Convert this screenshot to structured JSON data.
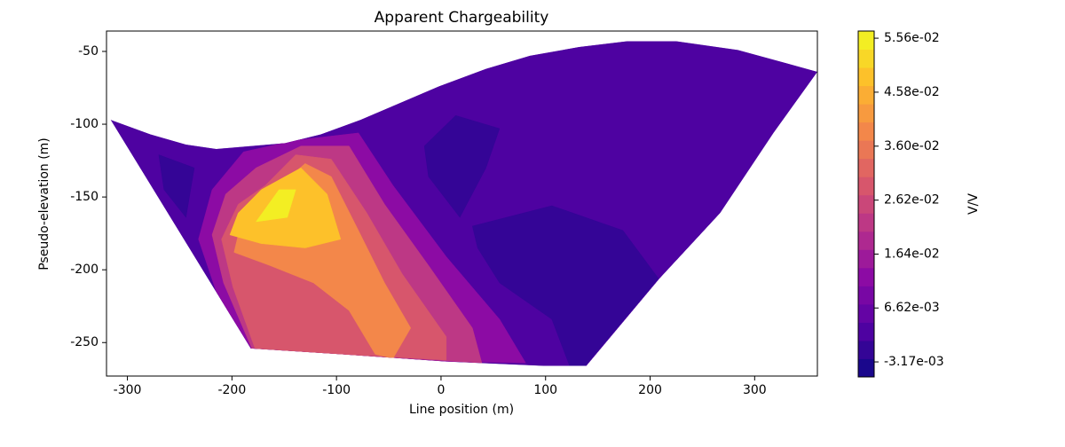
{
  "chart_data": {
    "type": "contour",
    "title": "Apparent Chargeability",
    "xlabel": "Line position (m)",
    "ylabel": "Pseudo-elevation (m)",
    "xlim": [
      -320,
      360
    ],
    "ylim": [
      -273,
      -36
    ],
    "xticks": [
      -300,
      -200,
      -100,
      0,
      100,
      200,
      300
    ],
    "yticks": [
      -250,
      -200,
      -150,
      -100,
      -50
    ],
    "colorbar_label": "V/V",
    "colormap": "plasma",
    "levels": 19,
    "clim": [
      -0.0059,
      0.0569
    ],
    "cticks": [
      {
        "value": -0.00317,
        "label": "-3.17e-03"
      },
      {
        "value": 0.00662,
        "label": "6.62e-03"
      },
      {
        "value": 0.0164,
        "label": "1.64e-02"
      },
      {
        "value": 0.0262,
        "label": "2.62e-02"
      },
      {
        "value": 0.036,
        "label": "3.60e-02"
      },
      {
        "value": 0.0458,
        "label": "4.58e-02"
      },
      {
        "value": 0.0556,
        "label": "5.56e-02"
      }
    ],
    "regions": [
      {
        "value": 0.003,
        "x": [
          -316,
          -278,
          -244,
          -215,
          -149,
          -115,
          -77,
          -2,
          43,
          85,
          132,
          178,
          225,
          284,
          360,
          318,
          267,
          209,
          139,
          98,
          5,
          -96,
          -182
        ],
        "y": [
          -97,
          -107,
          -114,
          -117,
          -113,
          -107,
          -97,
          -74,
          -62,
          -53,
          -47,
          -43,
          -43,
          -49,
          -64,
          -106,
          -161,
          -206,
          -266,
          -266,
          -263,
          -258,
          -254
        ]
      },
      {
        "value": -0.002,
        "x": [
          30,
          106,
          174,
          208,
          138,
          123,
          106,
          56,
          35
        ],
        "y": [
          -170,
          -156,
          -173,
          -206,
          -266,
          -266,
          -234,
          -209,
          -185
        ]
      },
      {
        "value": -0.002,
        "x": [
          -16,
          14,
          56,
          43,
          18,
          -12
        ],
        "y": [
          -115,
          -94,
          -103,
          -130,
          -164,
          -136
        ]
      },
      {
        "value": -0.002,
        "x": [
          -270,
          -236,
          -244,
          -265
        ],
        "y": [
          -121,
          -130,
          -164,
          -145
        ]
      },
      {
        "value": 0.012,
        "x": [
          -189,
          -139,
          -79,
          -46,
          5,
          56,
          81,
          5,
          -96,
          -183,
          -215,
          -232,
          -219
        ],
        "y": [
          -119,
          -111,
          -106,
          -142,
          -191,
          -234,
          -264,
          -263,
          -258,
          -254,
          -215,
          -179,
          -145
        ]
      },
      {
        "value": 0.022,
        "x": [
          -177,
          -134,
          -88,
          -54,
          -12,
          30,
          39,
          -79,
          -181,
          -208,
          -219,
          -206
        ],
        "y": [
          -130,
          -115,
          -115,
          -155,
          -197,
          -240,
          -264,
          -259,
          -254,
          -209,
          -176,
          -148
        ]
      },
      {
        "value": 0.03,
        "x": [
          -168,
          -139,
          -105,
          -71,
          -37,
          5,
          5,
          -96,
          -178,
          -199,
          -210,
          -194
        ],
        "y": [
          -142,
          -121,
          -124,
          -161,
          -203,
          -246,
          -262,
          -258,
          -254,
          -212,
          -179,
          -155
        ]
      },
      {
        "value": 0.038,
        "x": [
          -164,
          -130,
          -105,
          -79,
          -54,
          -29,
          -46,
          -63,
          -88,
          -122,
          -164,
          -198,
          -189
        ],
        "y": [
          -148,
          -127,
          -136,
          -173,
          -209,
          -240,
          -261,
          -258,
          -228,
          -209,
          -197,
          -188,
          -161
        ]
      },
      {
        "value": 0.048,
        "x": [
          -172,
          -134,
          -109,
          -96,
          -130,
          -172,
          -202,
          -194
        ],
        "y": [
          -145,
          -130,
          -148,
          -179,
          -185,
          -182,
          -176,
          -161
        ]
      },
      {
        "value": 0.054,
        "x": [
          -177,
          -155,
          -139,
          -147
        ],
        "y": [
          -167,
          -145,
          -145,
          -164
        ]
      }
    ]
  }
}
